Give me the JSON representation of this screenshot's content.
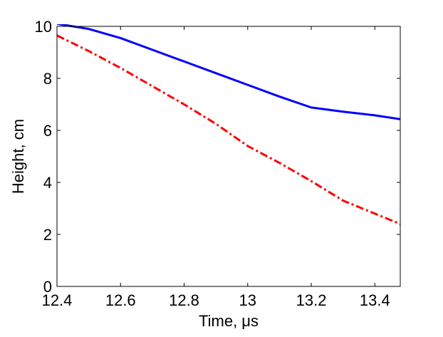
{
  "chart_data": {
    "type": "line",
    "title": "",
    "xlabel": "Time, μs",
    "ylabel": "Height, cm",
    "xlim": [
      12.4,
      13.48
    ],
    "ylim": [
      0,
      10
    ],
    "xticks": [
      12.4,
      12.6,
      12.8,
      13.0,
      13.2,
      13.4
    ],
    "xtick_labels": [
      "12.4",
      "12.6",
      "12.8",
      "13",
      "13.2",
      "13.4"
    ],
    "yticks": [
      0,
      2,
      4,
      6,
      8,
      10
    ],
    "ytick_labels": [
      "0",
      "2",
      "4",
      "6",
      "8",
      "10"
    ],
    "grid": false,
    "legend": "none",
    "series": [
      {
        "color": "#0000ff",
        "line_style": "solid",
        "x": [
          12.4,
          12.5,
          12.6,
          12.7,
          12.8,
          12.9,
          13.0,
          13.1,
          13.2,
          13.3,
          13.4,
          13.48
        ],
        "y": [
          10.1,
          9.9,
          9.55,
          9.1,
          8.65,
          8.2,
          7.75,
          7.3,
          6.88,
          6.72,
          6.58,
          6.43
        ]
      },
      {
        "color": "#ff0000",
        "line_style": "dash-dot",
        "x": [
          12.4,
          12.5,
          12.6,
          12.7,
          12.8,
          12.9,
          13.0,
          13.1,
          13.2,
          13.3,
          13.4,
          13.48
        ],
        "y": [
          9.65,
          9.05,
          8.4,
          7.7,
          7.0,
          6.25,
          5.4,
          4.75,
          4.05,
          3.3,
          2.8,
          2.4
        ]
      }
    ]
  }
}
